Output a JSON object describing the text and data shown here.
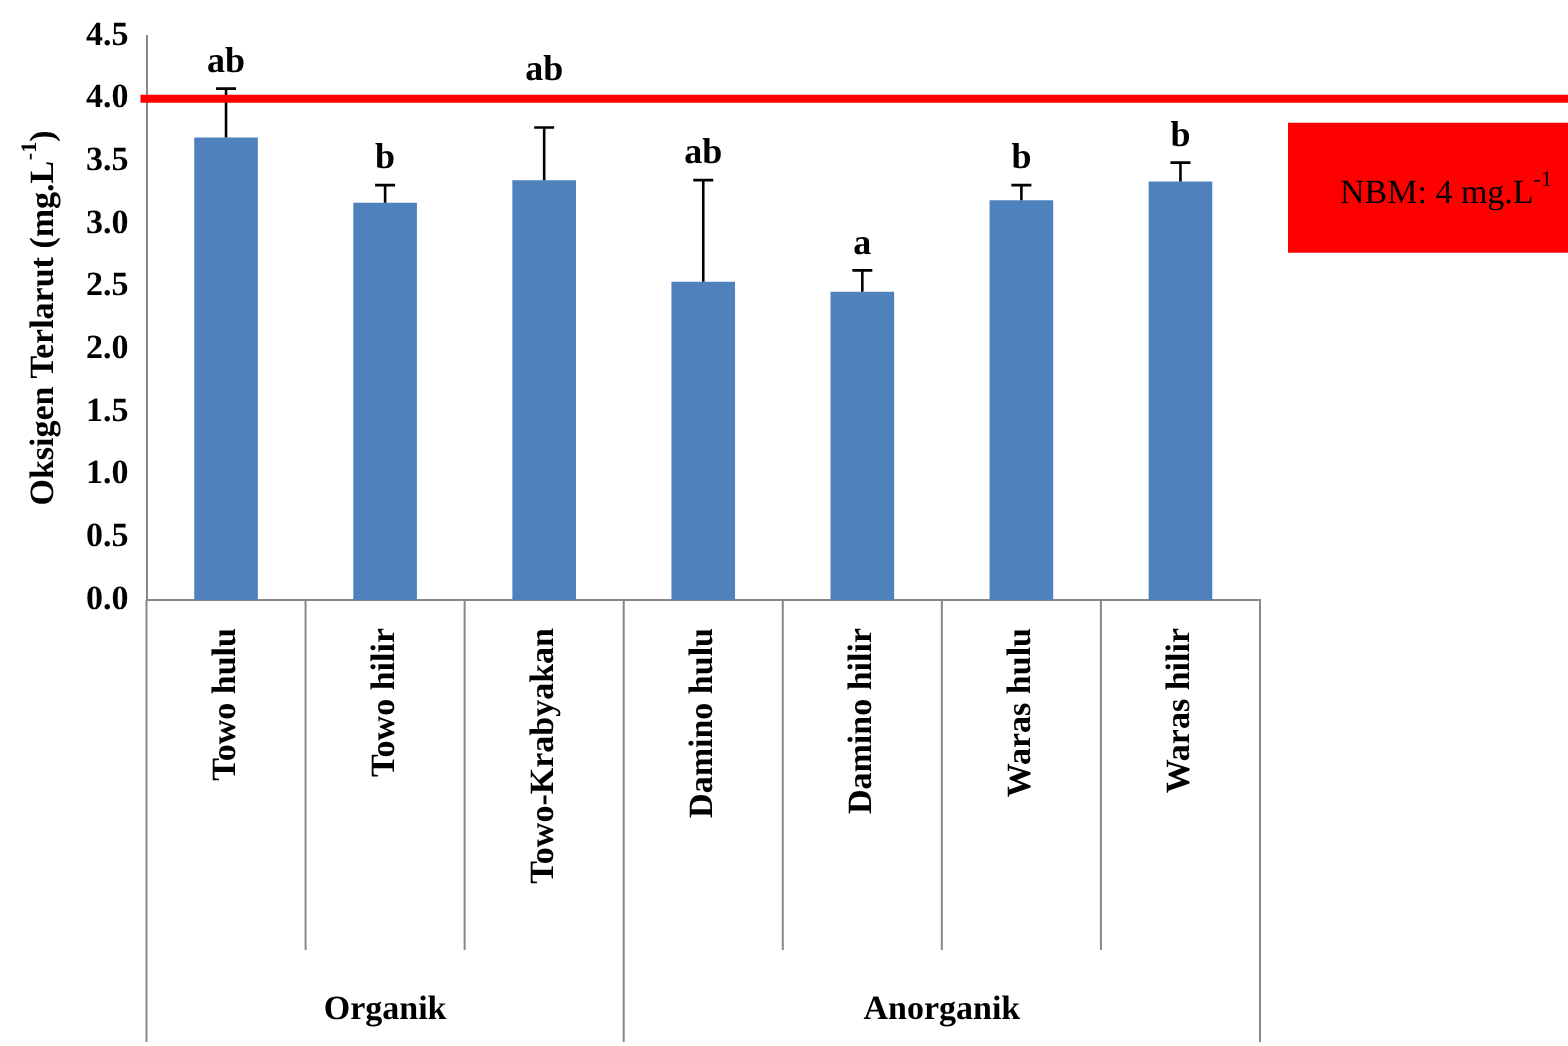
{
  "chart_data": {
    "type": "bar",
    "ylabel": "Oksigen Terlarut (mg.L$^{-1}$)",
    "categories": [
      "Towo hulu",
      "Towo hilir",
      "Towo-Krabyakan",
      "Damino hulu",
      "Damino hilir",
      "Waras hulu",
      "Waras hilir"
    ],
    "values": [
      3.69,
      3.17,
      3.35,
      2.54,
      2.46,
      3.19,
      3.34
    ],
    "errors": [
      [
        3.69,
        4.08
      ],
      [
        3.17,
        3.31
      ],
      [
        3.35,
        3.77
      ],
      [
        2.54,
        3.35
      ],
      [
        2.46,
        2.63
      ],
      [
        3.19,
        3.31
      ],
      [
        3.34,
        3.49
      ]
    ],
    "color": "#4f81bd",
    "ylim": [
      0,
      4.5
    ],
    "yticks": [
      {
        "value": 0,
        "label": "0.0"
      },
      0.5,
      {
        "value": 1,
        "label": "1.0"
      },
      1.5,
      {
        "value": 2,
        "label": "2.0"
      },
      2.5,
      {
        "value": 3,
        "label": "3.0"
      },
      3.5,
      {
        "value": 4,
        "label": "4.0"
      },
      4.5
    ],
    "ref_lines": [
      {
        "axis": "y",
        "value": 4,
        "label": "NBM: 4 mg.L$^{-1}$",
        "color": "#ff0000"
      }
    ],
    "annotations": [
      {
        "text": "ab",
        "x": "Towo hulu",
        "y": 4.08
      },
      {
        "text": "b",
        "x": "Towo hilir",
        "y": 3.31
      },
      {
        "text": "ab",
        "x": "Towo-Krabyakan",
        "y": 3.77
      },
      {
        "text": "ab",
        "x": "Damino hulu",
        "y": 3.35
      },
      {
        "text": "a",
        "x": "Damino hilir",
        "y": 2.63
      },
      {
        "text": "b",
        "x": "Waras hulu",
        "y": 3.31
      },
      {
        "text": "b",
        "x": "Waras hilir",
        "y": 3.49
      },
      "Organik",
      "Anorganik"
    ],
    "grid": false,
    "legend": false
  }
}
